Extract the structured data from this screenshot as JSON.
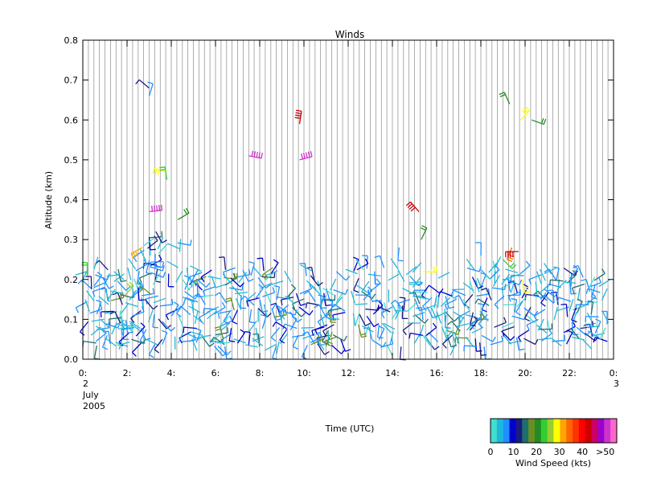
{
  "chart_data": {
    "type": "scatter",
    "title": "Winds",
    "xlabel": "Time (UTC)",
    "ylabel": "Altitude (km)",
    "xlim": [
      0,
      24
    ],
    "ylim": [
      0.0,
      0.8
    ],
    "x_ticks": [
      0,
      2,
      4,
      6,
      8,
      10,
      12,
      14,
      16,
      18,
      20,
      22,
      24
    ],
    "x_tick_labels": [
      "0:",
      "2:",
      "4:",
      "6:",
      "8:",
      "10:",
      "12:",
      "14:",
      "16:",
      "18:",
      "20:",
      "22:",
      "0:"
    ],
    "x_start_date": {
      "day": "2",
      "month": "July",
      "year": "2005"
    },
    "x_end_date": {
      "day": "3"
    },
    "y_ticks": [
      0.0,
      0.1,
      0.2,
      0.3,
      0.4,
      0.5,
      0.6,
      0.7,
      0.8
    ],
    "y_tick_labels": [
      "0.0",
      "0.1",
      "0.2",
      "0.3",
      "0.4",
      "0.5",
      "0.6",
      "0.7",
      "0.8"
    ],
    "colorbar": {
      "label": "Wind Speed (kts)",
      "tick_labels": [
        "0",
        "10",
        "20",
        "30",
        "40",
        ">50"
      ],
      "tick_values": [
        0,
        10,
        20,
        30,
        40,
        50
      ],
      "colors": [
        "#40e0d0",
        "#20b8d8",
        "#1e90ff",
        "#0000cd",
        "#1a1a80",
        "#1e6e6e",
        "#6b8e23",
        "#228b22",
        "#32cd32",
        "#9acd32",
        "#ffff00",
        "#ffa500",
        "#ff6600",
        "#ff3300",
        "#ff0000",
        "#cc0000",
        "#cc0066",
        "#9900cc",
        "#cc33cc",
        "#ff66cc"
      ]
    },
    "series": [
      {
        "values": [
          {
            "t": 0.2,
            "alt": 0.21,
            "spd": 22
          },
          {
            "t": 0.5,
            "alt": 0.18,
            "spd": 5
          },
          {
            "t": 0.8,
            "alt": 0.1,
            "spd": 4
          },
          {
            "t": 1.1,
            "alt": 0.06,
            "spd": 6
          },
          {
            "t": 1.4,
            "alt": 0.12,
            "spd": 9
          },
          {
            "t": 1.7,
            "alt": 0.09,
            "spd": 11
          },
          {
            "t": 1.9,
            "alt": 0.16,
            "spd": 23
          },
          {
            "t": 2.2,
            "alt": 0.05,
            "spd": 13
          },
          {
            "t": 2.5,
            "alt": 0.18,
            "spd": 9
          },
          {
            "t": 2.7,
            "alt": 0.28,
            "spd": 29
          },
          {
            "t": 3.0,
            "alt": 0.68,
            "spd": 11
          },
          {
            "t": 3.0,
            "alt": 0.66,
            "spd": 5
          },
          {
            "t": 3.0,
            "alt": 0.37,
            "spd": 45
          },
          {
            "t": 3.3,
            "alt": 0.32,
            "spd": 12
          },
          {
            "t": 3.6,
            "alt": 0.05,
            "spd": 12
          },
          {
            "t": 3.8,
            "alt": 0.47,
            "spd": 27
          },
          {
            "t": 3.8,
            "alt": 0.45,
            "spd": 20
          },
          {
            "t": 4.3,
            "alt": 0.35,
            "spd": 18
          },
          {
            "t": 4.6,
            "alt": 0.17,
            "spd": 5
          },
          {
            "t": 5.2,
            "alt": 0.12,
            "spd": 3
          },
          {
            "t": 5.8,
            "alt": 0.06,
            "spd": 4
          },
          {
            "t": 6.5,
            "alt": 0.14,
            "spd": 5
          },
          {
            "t": 7.0,
            "alt": 0.04,
            "spd": 9
          },
          {
            "t": 7.5,
            "alt": 0.51,
            "spd": 46
          },
          {
            "t": 8.0,
            "alt": 0.15,
            "spd": 5
          },
          {
            "t": 8.6,
            "alt": 0.23,
            "spd": 17
          },
          {
            "t": 9.2,
            "alt": 0.12,
            "spd": 6
          },
          {
            "t": 9.8,
            "alt": 0.59,
            "spd": 38
          },
          {
            "t": 9.8,
            "alt": 0.5,
            "spd": 45
          },
          {
            "t": 10.3,
            "alt": 0.21,
            "spd": 12
          },
          {
            "t": 11.0,
            "alt": 0.16,
            "spd": 4
          },
          {
            "t": 11.6,
            "alt": 0.1,
            "spd": 3
          },
          {
            "t": 12.3,
            "alt": 0.14,
            "spd": 4
          },
          {
            "t": 13.0,
            "alt": 0.17,
            "spd": 5
          },
          {
            "t": 13.6,
            "alt": 0.09,
            "spd": 3
          },
          {
            "t": 14.3,
            "alt": 0.28,
            "spd": 6
          },
          {
            "t": 14.8,
            "alt": 0.15,
            "spd": 5
          },
          {
            "t": 15.2,
            "alt": 0.37,
            "spd": 39
          },
          {
            "t": 15.3,
            "alt": 0.3,
            "spd": 19
          },
          {
            "t": 15.4,
            "alt": 0.22,
            "spd": 27
          },
          {
            "t": 16.0,
            "alt": 0.12,
            "spd": 4
          },
          {
            "t": 16.7,
            "alt": 0.06,
            "spd": 12
          },
          {
            "t": 17.3,
            "alt": 0.16,
            "spd": 5
          },
          {
            "t": 18.0,
            "alt": 0.26,
            "spd": 6
          },
          {
            "t": 18.6,
            "alt": 0.08,
            "spd": 11
          },
          {
            "t": 19.0,
            "alt": 0.25,
            "spd": 21
          },
          {
            "t": 19.4,
            "alt": 0.28,
            "spd": 32
          },
          {
            "t": 19.7,
            "alt": 0.27,
            "spd": 38
          },
          {
            "t": 19.3,
            "alt": 0.64,
            "spd": 18
          },
          {
            "t": 19.8,
            "alt": 0.6,
            "spd": 25
          },
          {
            "t": 20.3,
            "alt": 0.6,
            "spd": 18
          },
          {
            "t": 19.9,
            "alt": 0.2,
            "spd": 26
          },
          {
            "t": 20.6,
            "alt": 0.1,
            "spd": 6
          },
          {
            "t": 21.3,
            "alt": 0.14,
            "spd": 5
          },
          {
            "t": 22.0,
            "alt": 0.12,
            "spd": 4
          },
          {
            "t": 22.8,
            "alt": 0.08,
            "spd": 3
          },
          {
            "t": 23.5,
            "alt": 0.12,
            "spd": 4
          }
        ]
      }
    ],
    "grid": true
  }
}
